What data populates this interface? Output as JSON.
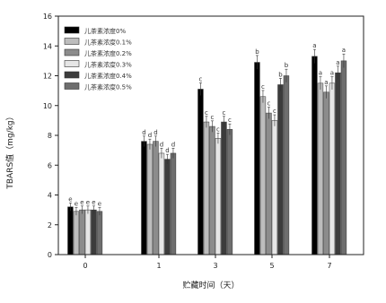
{
  "chart_data": {
    "type": "bar",
    "title": "",
    "xlabel": "贮藏时间（天）",
    "ylabel": "TBARS值（mg/kg）",
    "ylim": [
      0,
      16
    ],
    "yticks": [
      0,
      2,
      4,
      6,
      8,
      10,
      12,
      14,
      16
    ],
    "categories": [
      "0",
      "1",
      "3",
      "5",
      "7"
    ],
    "legend_position": "top-left",
    "grid": false,
    "series": [
      {
        "name": "儿茶素浓度0%",
        "color": "#000000",
        "values": [
          3.2,
          7.6,
          11.1,
          12.9,
          13.3
        ],
        "letters": [
          "e",
          "d",
          "c",
          "b",
          "a"
        ]
      },
      {
        "name": "儿茶素浓度0.1%",
        "color": "#bdbdbd",
        "values": [
          2.9,
          7.4,
          8.9,
          10.6,
          11.5
        ],
        "letters": [
          "e",
          "d",
          "c",
          "c",
          "a"
        ]
      },
      {
        "name": "儿茶素浓度0.2%",
        "color": "#8c8c8c",
        "values": [
          3.0,
          7.6,
          8.6,
          9.5,
          10.9
        ],
        "letters": [
          "e",
          "d",
          "c",
          "c",
          "a"
        ]
      },
      {
        "name": "儿茶素浓度0.3%",
        "color": "#e6e6e6",
        "values": [
          3.0,
          6.8,
          7.8,
          9.0,
          11.5
        ],
        "letters": [
          "e",
          "d",
          "c",
          "c",
          "a"
        ]
      },
      {
        "name": "儿茶素浓度0.4%",
        "color": "#3c3c3c",
        "values": [
          3.0,
          6.4,
          8.9,
          11.4,
          12.2
        ],
        "letters": [
          "e",
          "d",
          "c",
          "b",
          "a"
        ]
      },
      {
        "name": "儿茶素浓度0.5%",
        "color": "#6e6e6e",
        "values": [
          2.9,
          6.8,
          8.4,
          12.0,
          13.0
        ],
        "letters": [
          "e",
          "d",
          "c",
          "b",
          "a"
        ]
      }
    ]
  }
}
